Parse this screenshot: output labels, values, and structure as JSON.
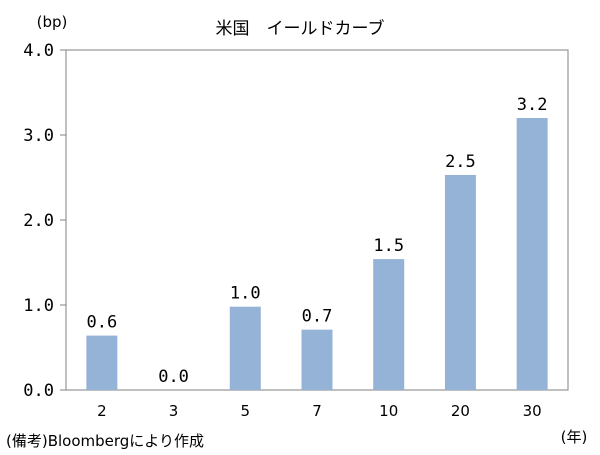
{
  "chart_data": {
    "type": "bar",
    "title": "米国　イールドカーブ",
    "ylabel": "(bp)",
    "xlabel": "(年)",
    "categories": [
      "2",
      "3",
      "5",
      "7",
      "10",
      "20",
      "30"
    ],
    "values": [
      0.6,
      0.0,
      1.0,
      0.7,
      1.5,
      2.5,
      3.2
    ],
    "value_labels": [
      "0.6",
      "0.0",
      "1.0",
      "0.7",
      "1.5",
      "2.5",
      "3.2"
    ],
    "bar_heights": [
      0.64,
      0.0,
      0.98,
      0.71,
      1.54,
      2.53,
      3.2
    ],
    "ylim": [
      0,
      4.0
    ],
    "yticks": [
      0,
      1,
      2,
      3,
      4
    ],
    "ytick_labels": [
      "0.0",
      "1.0",
      "2.0",
      "3.0",
      "4.0"
    ],
    "grid": false,
    "legend": "none",
    "bar_color": "#95b3d7",
    "source_note": "(備考)Bloombergにより作成"
  }
}
